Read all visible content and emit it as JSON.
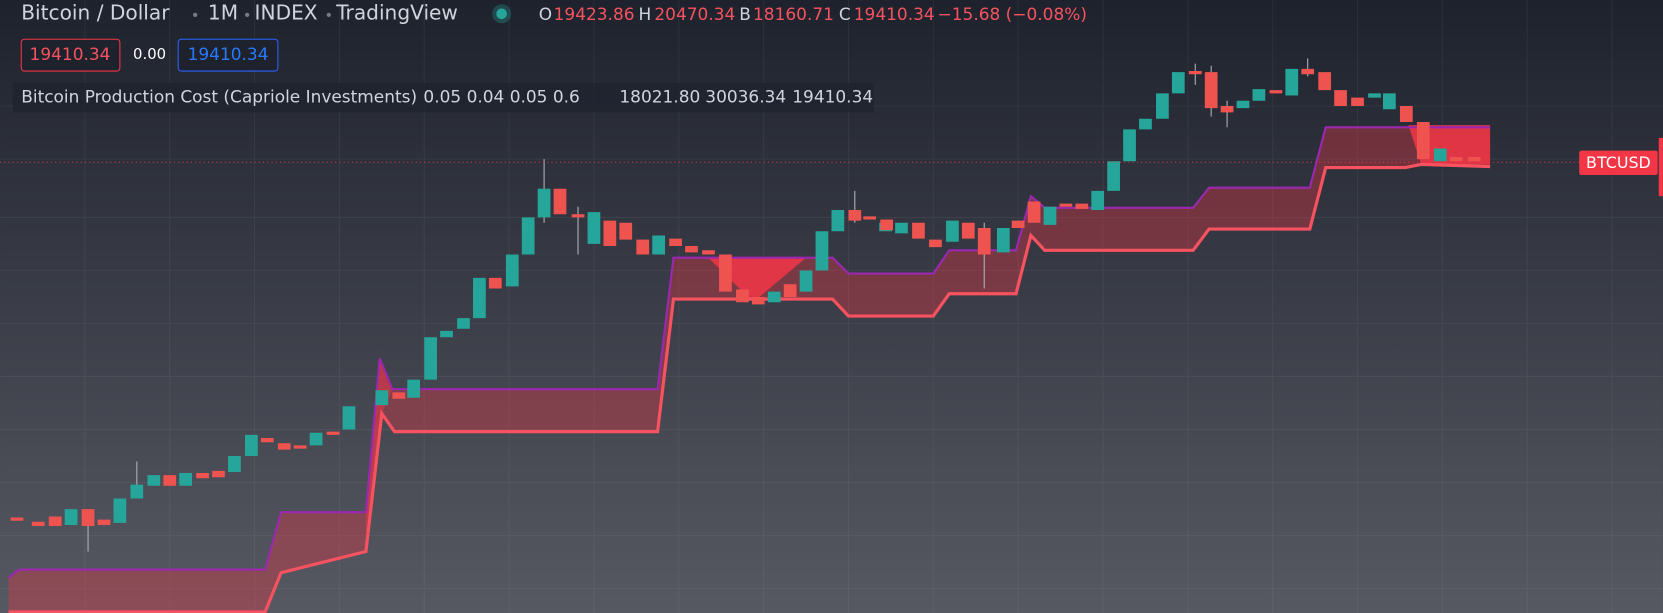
{
  "header": {
    "symbol": "Bitcoin / Dollar",
    "interval": "1M",
    "source": "INDEX",
    "platform": "TradingView",
    "ohlc": {
      "open_label": "O",
      "open": "19423.86",
      "high_label": "H",
      "high": "20470.34",
      "low_label": "B",
      "low": "18160.71",
      "close_label": "C",
      "close": "19410.34",
      "change": "−15.68 (−0.08%)"
    }
  },
  "buttons": {
    "sell": "19410.34",
    "spread": "0.00",
    "buy": "19410.34"
  },
  "indicator": {
    "name": "Bitcoin Production Cost (Capriole Investments)",
    "params": "0.05 0.04 0.05 0.6",
    "values": [
      "18021.80",
      "30036.34",
      "19410.34"
    ]
  },
  "price_label": "BTCUSD"
}
